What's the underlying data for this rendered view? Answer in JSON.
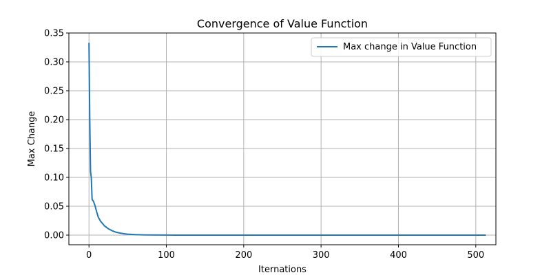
{
  "chart_data": {
    "type": "line",
    "title": "Convergence of Value Function",
    "xlabel": "Iternations",
    "ylabel": "Max Change",
    "xlim": [
      -26,
      526
    ],
    "ylim": [
      -0.0167,
      0.35
    ],
    "xticks": [
      0,
      100,
      200,
      300,
      400,
      500
    ],
    "yticks": [
      0.0,
      0.05,
      0.1,
      0.15,
      0.2,
      0.25,
      0.3,
      0.35
    ],
    "xtick_labels": [
      "0",
      "100",
      "200",
      "300",
      "400",
      "500"
    ],
    "ytick_labels": [
      "0.00",
      "0.05",
      "0.10",
      "0.15",
      "0.20",
      "0.25",
      "0.30",
      "0.35"
    ],
    "grid": true,
    "legend_position": "top-right",
    "series": [
      {
        "name": "Max change in Value Function",
        "color": "#1f77b4",
        "x": [
          0,
          1,
          2,
          3,
          4,
          5,
          6,
          8,
          10,
          12,
          15,
          20,
          25,
          30,
          35,
          40,
          45,
          50,
          60,
          70,
          80,
          100,
          150,
          200,
          300,
          400,
          513
        ],
        "y": [
          0.333,
          0.2,
          0.11,
          0.1,
          0.062,
          0.06,
          0.058,
          0.05,
          0.04,
          0.031,
          0.024,
          0.016,
          0.011,
          0.0075,
          0.005,
          0.0035,
          0.0024,
          0.0016,
          0.0008,
          0.0004,
          0.0002,
          5e-05,
          0.0,
          0.0,
          0.0,
          0.0,
          0.0
        ]
      }
    ]
  }
}
